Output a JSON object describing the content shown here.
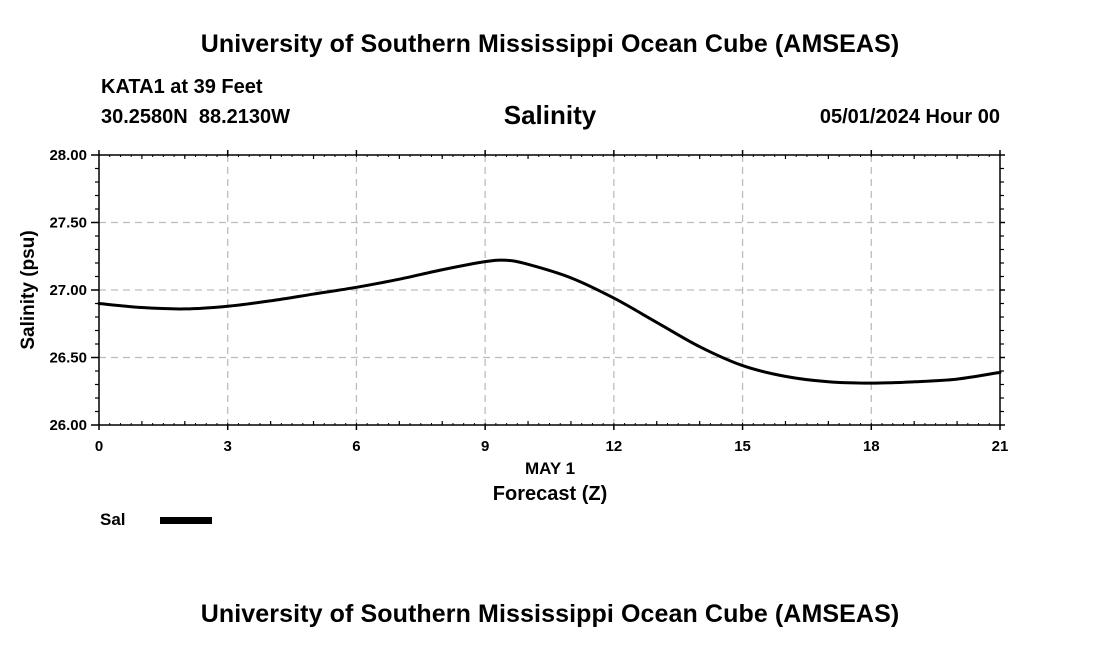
{
  "header": {
    "title": "University of Southern Mississippi Ocean Cube (AMSEAS)",
    "station": "KATA1 at 39 Feet",
    "coordinates": "30.2580N  88.2130W",
    "chart_title": "Salinity",
    "datetime": "05/01/2024 Hour 00"
  },
  "footer": {
    "title": "University of Southern Mississippi Ocean Cube (AMSEAS)"
  },
  "legend": {
    "label": "Sal",
    "color": "#000000"
  },
  "chart_data": {
    "type": "line",
    "title": "Salinity",
    "xlabel": "Forecast (Z)",
    "xsublabel": "MAY 1",
    "ylabel": "Salinity (psu)",
    "xlim": [
      0,
      21
    ],
    "ylim": [
      26.0,
      28.0
    ],
    "xticks": [
      0,
      3,
      6,
      9,
      12,
      15,
      18,
      21
    ],
    "yticks": [
      26.0,
      26.5,
      27.0,
      27.5,
      28.0
    ],
    "ytick_labels": [
      "26.00",
      "26.50",
      "27.00",
      "27.50",
      "28.00"
    ],
    "grid": true,
    "series": [
      {
        "name": "Sal",
        "color": "#000000",
        "x": [
          0,
          1,
          2,
          3,
          4,
          5,
          6,
          7,
          8,
          9,
          9.5,
          10,
          11,
          12,
          13,
          14,
          15,
          16,
          17,
          18,
          19,
          20,
          21
        ],
        "values": [
          26.9,
          26.87,
          26.86,
          26.88,
          26.92,
          26.97,
          27.02,
          27.08,
          27.15,
          27.21,
          27.22,
          27.19,
          27.09,
          26.94,
          26.76,
          26.58,
          26.44,
          26.36,
          26.32,
          26.31,
          26.32,
          26.34,
          26.39
        ]
      }
    ]
  }
}
